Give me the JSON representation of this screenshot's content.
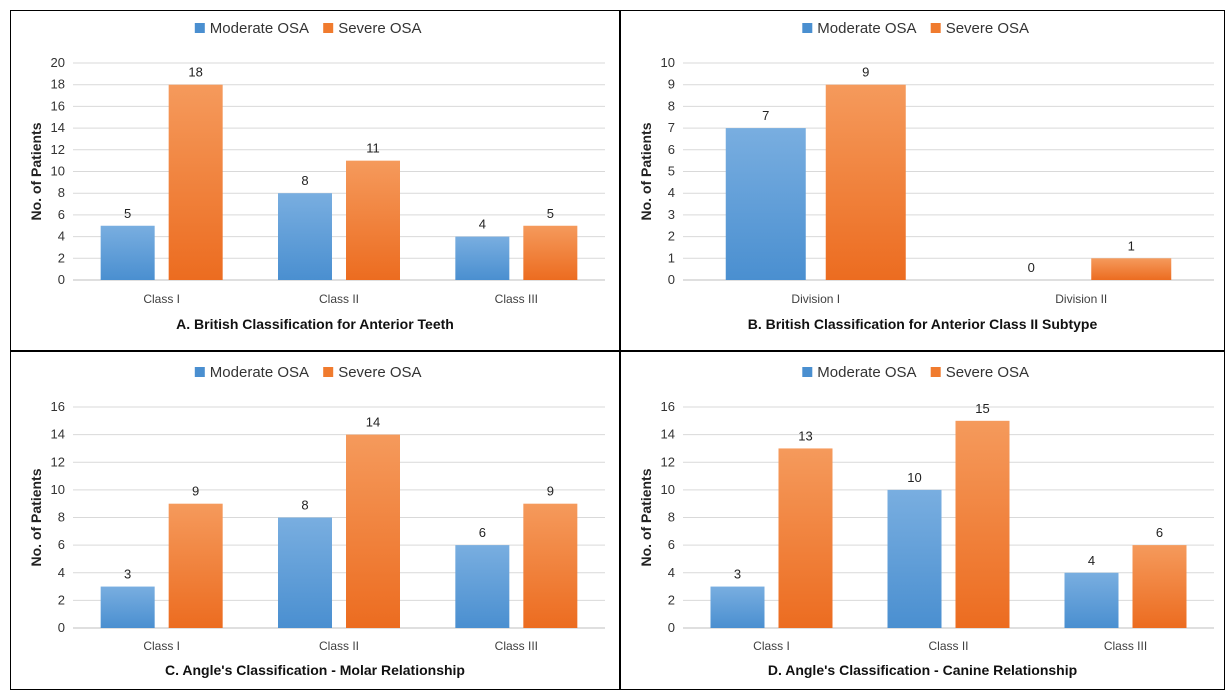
{
  "colors": {
    "moderate": "#4a8fd0",
    "severe": "#f07b2e"
  },
  "chart_data": [
    {
      "type": "bar",
      "title": "A. British Classification for Anterior Teeth",
      "ylabel": "No. of Patients",
      "xlabel": "",
      "categories": [
        "Class I",
        "Class II",
        "Class III"
      ],
      "series": [
        {
          "name": "Moderate OSA",
          "values": [
            5,
            8,
            4
          ]
        },
        {
          "name": "Severe OSA",
          "values": [
            18,
            11,
            5
          ]
        }
      ],
      "ylim": [
        0,
        20
      ],
      "ytick_step": 2,
      "legend": "top",
      "grid": true
    },
    {
      "type": "bar",
      "title": "B. British Classification for Anterior Class II Subtype",
      "ylabel": "No. of Patients",
      "xlabel": "",
      "categories": [
        "Division I",
        "Division II"
      ],
      "series": [
        {
          "name": "Moderate OSA",
          "values": [
            7,
            0
          ]
        },
        {
          "name": "Severe OSA",
          "values": [
            9,
            1
          ]
        }
      ],
      "ylim": [
        0,
        10
      ],
      "ytick_step": 1,
      "legend": "top",
      "grid": true
    },
    {
      "type": "bar",
      "title": "C. Angle's Classification - Molar Relationship",
      "ylabel": "No. of Patients",
      "xlabel": "",
      "categories": [
        "Class I",
        "Class II",
        "Class III"
      ],
      "series": [
        {
          "name": "Moderate OSA",
          "values": [
            3,
            8,
            6
          ]
        },
        {
          "name": "Severe OSA",
          "values": [
            9,
            14,
            9
          ]
        }
      ],
      "ylim": [
        0,
        16
      ],
      "ytick_step": 2,
      "legend": "top",
      "grid": true
    },
    {
      "type": "bar",
      "title": "D. Angle's Classification - Canine Relationship",
      "ylabel": "No. of Patients",
      "xlabel": "",
      "categories": [
        "Class I",
        "Class II",
        "Class III"
      ],
      "series": [
        {
          "name": "Moderate OSA",
          "values": [
            3,
            10,
            4
          ]
        },
        {
          "name": "Severe OSA",
          "values": [
            13,
            15,
            6
          ]
        }
      ],
      "ylim": [
        0,
        16
      ],
      "ytick_step": 2,
      "legend": "top",
      "grid": true
    }
  ]
}
